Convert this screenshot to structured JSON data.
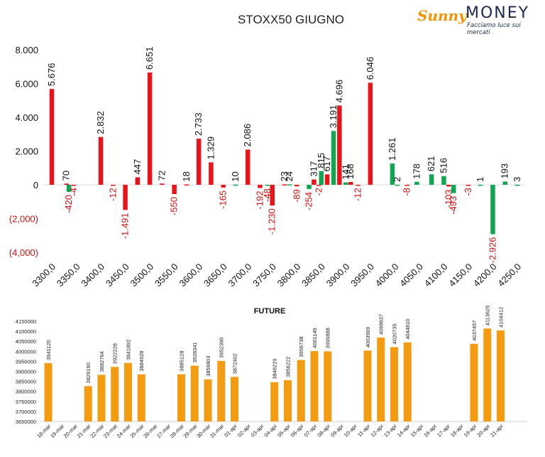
{
  "title": "STOXX50 GIUGNO",
  "logo": {
    "brand_a": "Sunny",
    "brand_b": "MONEY",
    "tagline": "Facciamo luce sui mercati"
  },
  "colors": {
    "negative": "#e8141a",
    "positive": "#12a552",
    "future_bar": "#f39c12",
    "neg_label": "#d01010"
  },
  "chart_data": [
    {
      "type": "bar",
      "title": "STOXX50 GIUGNO",
      "categories": [
        "3300,0",
        "3350,0",
        "3400,0",
        "3450,0",
        "3500,0",
        "3550,0",
        "3600,0",
        "3650,0",
        "3700,0",
        "3750,0",
        "3800,0",
        "3850,0",
        "3900,0",
        "3950,0",
        "4000,0",
        "4050,0",
        "4100,0",
        "4150,0",
        "4200,0",
        "4250,0"
      ],
      "ylim": [
        -4000,
        8000
      ],
      "yticks": [
        "(4,000)",
        "(2,000)",
        "0",
        "2.000",
        "4.000",
        "6.000",
        "8.000"
      ],
      "ytick_values": [
        -4000,
        -2000,
        0,
        2000,
        4000,
        6000,
        8000
      ],
      "grid": false,
      "bars": [
        {
          "strike": 3300,
          "color": "red",
          "value": 5676,
          "label": "5.676"
        },
        {
          "strike": 3330,
          "color": "red",
          "value": 70,
          "label": "70"
        },
        {
          "strike": 3335,
          "color": "green",
          "value": -420,
          "label": "-420"
        },
        {
          "strike": 3345,
          "color": "red",
          "value": -4,
          "label": "-4"
        },
        {
          "strike": 3400,
          "color": "red",
          "value": 2832,
          "label": "2.832"
        },
        {
          "strike": 3425,
          "color": "red",
          "value": -12,
          "label": "-12"
        },
        {
          "strike": 3450,
          "color": "red",
          "value": -1491,
          "label": "-1.491"
        },
        {
          "strike": 3475,
          "color": "red",
          "value": 447,
          "label": "447"
        },
        {
          "strike": 3500,
          "color": "red",
          "value": 6651,
          "label": "6.651"
        },
        {
          "strike": 3525,
          "color": "red",
          "value": 72,
          "label": "72"
        },
        {
          "strike": 3550,
          "color": "red",
          "value": -550,
          "label": "-550"
        },
        {
          "strike": 3575,
          "color": "red",
          "value": 18,
          "label": "18"
        },
        {
          "strike": 3600,
          "color": "red",
          "value": 2733,
          "label": "2.733"
        },
        {
          "strike": 3625,
          "color": "red",
          "value": 1329,
          "label": "1.329"
        },
        {
          "strike": 3650,
          "color": "red",
          "value": -165,
          "label": "-165"
        },
        {
          "strike": 3675,
          "color": "green",
          "value": 10,
          "label": "10"
        },
        {
          "strike": 3700,
          "color": "red",
          "value": 2086,
          "label": "2.086"
        },
        {
          "strike": 3725,
          "color": "red",
          "value": -192,
          "label": "-192"
        },
        {
          "strike": 3740,
          "color": "green",
          "value": -48,
          "label": "-48"
        },
        {
          "strike": 3750,
          "color": "red",
          "value": -1230,
          "label": "-1.230"
        },
        {
          "strike": 3775,
          "color": "red",
          "value": 23,
          "label": "23"
        },
        {
          "strike": 3785,
          "color": "green",
          "value": 24,
          "label": "24"
        },
        {
          "strike": 3800,
          "color": "red",
          "value": -89,
          "label": "-89"
        },
        {
          "strike": 3825,
          "color": "green",
          "value": -254,
          "label": "-254"
        },
        {
          "strike": 3835,
          "color": "red",
          "value": 317,
          "label": "317"
        },
        {
          "strike": 3845,
          "color": "red",
          "value": -2,
          "label": "-2"
        },
        {
          "strike": 3850,
          "color": "green",
          "value": 815,
          "label": "815"
        },
        {
          "strike": 3862,
          "color": "red",
          "value": 617,
          "label": "617"
        },
        {
          "strike": 3875,
          "color": "green",
          "value": 3191,
          "label": "3.191"
        },
        {
          "strike": 3887,
          "color": "red",
          "value": 4696,
          "label": "4.696"
        },
        {
          "strike": 3900,
          "color": "green",
          "value": 141,
          "label": "141"
        },
        {
          "strike": 3910,
          "color": "red",
          "value": 168,
          "label": "168"
        },
        {
          "strike": 3925,
          "color": "red",
          "value": -12,
          "label": "-12"
        },
        {
          "strike": 3950,
          "color": "red",
          "value": 6046,
          "label": "6.046"
        },
        {
          "strike": 3995,
          "color": "green",
          "value": 1261,
          "label": "1.261"
        },
        {
          "strike": 4005,
          "color": "green",
          "value": 2,
          "label": "2"
        },
        {
          "strike": 4025,
          "color": "red",
          "value": -8,
          "label": "-8"
        },
        {
          "strike": 4045,
          "color": "green",
          "value": 178,
          "label": "178"
        },
        {
          "strike": 4075,
          "color": "green",
          "value": 621,
          "label": "621"
        },
        {
          "strike": 4100,
          "color": "green",
          "value": 516,
          "label": "516"
        },
        {
          "strike": 4110,
          "color": "red",
          "value": -103,
          "label": "-103"
        },
        {
          "strike": 4120,
          "color": "green",
          "value": -493,
          "label": "-493"
        },
        {
          "strike": 4150,
          "color": "red",
          "value": -3,
          "label": "-3"
        },
        {
          "strike": 4175,
          "color": "green",
          "value": 1,
          "label": "1"
        },
        {
          "strike": 4200,
          "color": "green",
          "value": -2926,
          "label": "-2.926"
        },
        {
          "strike": 4225,
          "color": "green",
          "value": 193,
          "label": "193"
        },
        {
          "strike": 4250,
          "color": "green",
          "value": 3,
          "label": "3"
        }
      ]
    },
    {
      "type": "bar",
      "title": "FUTURE",
      "categories": [
        "18-mar",
        "19-mar",
        "20-mar",
        "21-mar",
        "22-mar",
        "23-mar",
        "24-mar",
        "25-mar",
        "26-mar",
        "27-mar",
        "28-mar",
        "29-mar",
        "30-mar",
        "31-mar",
        "01-apr",
        "02-apr",
        "03-apr",
        "04-apr",
        "05-apr",
        "06-apr",
        "07-apr",
        "08-apr",
        "09-apr",
        "10-apr",
        "11-apr",
        "12-apr",
        "13-apr",
        "14-apr",
        "15-apr",
        "16-apr",
        "17-apr",
        "18-apr",
        "19-apr",
        "20-apr",
        "21-apr"
      ],
      "values": [
        3941120,
        null,
        null,
        3826190,
        3882764,
        3922228,
        3941892,
        3884928,
        null,
        null,
        3885128,
        3928341,
        3859803,
        3952390,
        3872402,
        null,
        null,
        3846229,
        3856222,
        3956738,
        4001149,
        3999888,
        null,
        null,
        4003969,
        4068637,
        4020735,
        4044810,
        null,
        null,
        null,
        null,
        4037457,
        4113625,
        4104412
      ],
      "ylim": [
        3650000,
        4150000
      ],
      "yticks": [
        "3650000",
        "3700000",
        "3750000",
        "3800000",
        "3850000",
        "3900000",
        "3950000",
        "4000000",
        "4050000",
        "4100000",
        "4150000"
      ],
      "ytick_values": [
        3650000,
        3700000,
        3750000,
        3800000,
        3850000,
        3900000,
        3950000,
        4000000,
        4050000,
        4100000,
        4150000
      ],
      "grid": false
    }
  ]
}
